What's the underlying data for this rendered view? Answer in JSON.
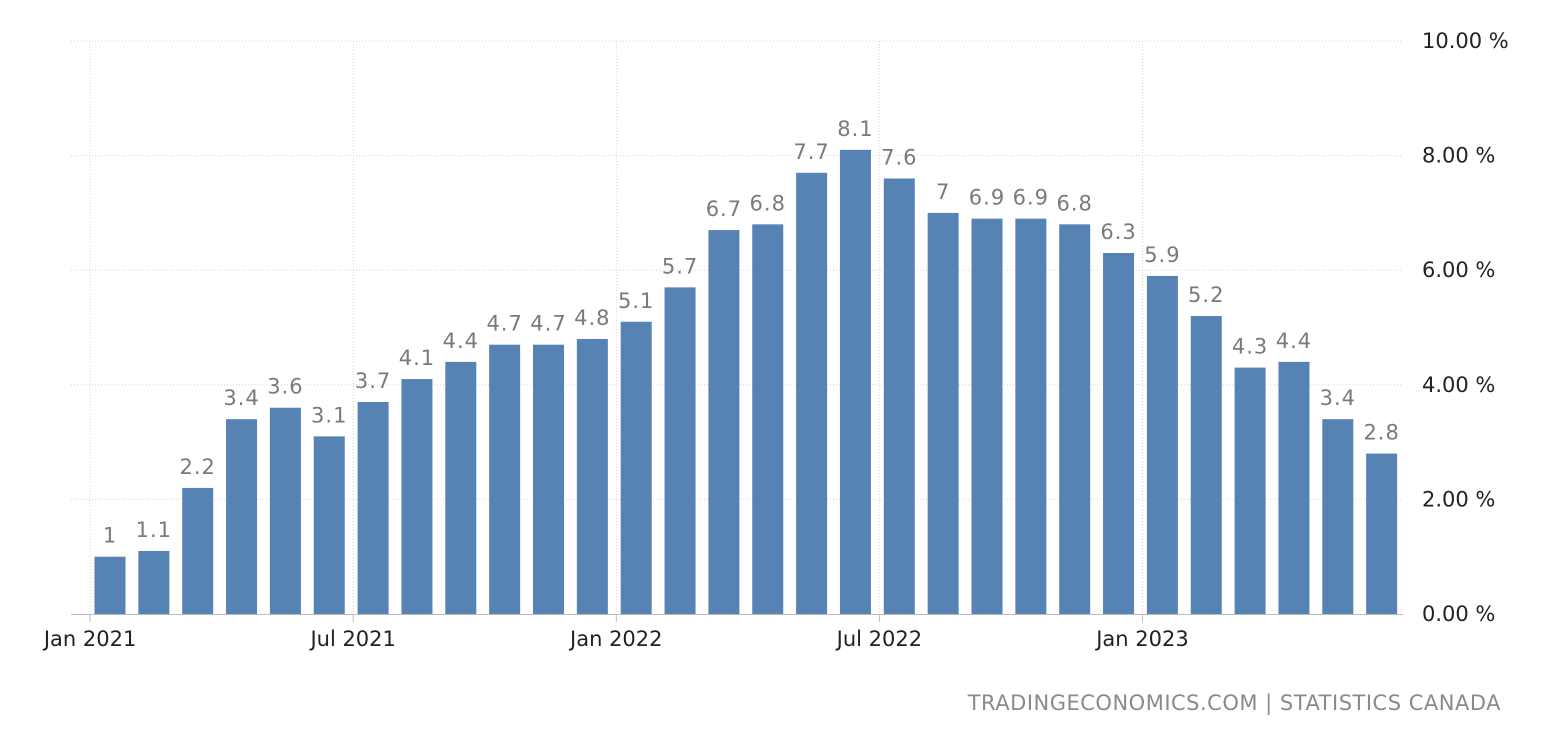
{
  "chart_data": {
    "type": "bar",
    "title": "",
    "xlabel": "",
    "ylabel": "",
    "categories": [
      "Jan 2021",
      "Feb 2021",
      "Mar 2021",
      "Apr 2021",
      "May 2021",
      "Jun 2021",
      "Jul 2021",
      "Aug 2021",
      "Sep 2021",
      "Oct 2021",
      "Nov 2021",
      "Dec 2021",
      "Jan 2022",
      "Feb 2022",
      "Mar 2022",
      "Apr 2022",
      "May 2022",
      "Jun 2022",
      "Jul 2022",
      "Aug 2022",
      "Sep 2022",
      "Oct 2022",
      "Nov 2022",
      "Dec 2022",
      "Jan 2023",
      "Feb 2023",
      "Mar 2023",
      "Apr 2023",
      "May 2023",
      "Jun 2023"
    ],
    "values": [
      1,
      1.1,
      2.2,
      3.4,
      3.6,
      3.1,
      3.7,
      4.1,
      4.4,
      4.7,
      4.7,
      4.8,
      5.1,
      5.7,
      6.7,
      6.8,
      7.7,
      8.1,
      7.6,
      7,
      6.9,
      6.9,
      6.8,
      6.3,
      5.9,
      5.2,
      4.3,
      4.4,
      3.4,
      2.8
    ],
    "data_labels": [
      "1",
      "1.1",
      "2.2",
      "3.4",
      "3.6",
      "3.1",
      "3.7",
      "4.1",
      "4.4",
      "4.7",
      "4.7",
      "4.8",
      "5.1",
      "5.7",
      "6.7",
      "6.8",
      "7.7",
      "8.1",
      "7.6",
      "7",
      "6.9",
      "6.9",
      "6.8",
      "6.3",
      "5.9",
      "5.2",
      "4.3",
      "4.4",
      "3.4",
      "2.8"
    ],
    "x_tick_labels": [
      {
        "category": "Jan 2021",
        "label": "Jan 2021"
      },
      {
        "category": "Jul 2021",
        "label": "Jul 2021"
      },
      {
        "category": "Jan 2022",
        "label": "Jan 2022"
      },
      {
        "category": "Jul 2022",
        "label": "Jul 2022"
      },
      {
        "category": "Jan 2023",
        "label": "Jan 2023"
      }
    ],
    "y_ticks": [
      0,
      2,
      4,
      6,
      8,
      10
    ],
    "y_tick_labels": [
      "0.00 %",
      "2.00 %",
      "4.00 %",
      "6.00 %",
      "8.00 %",
      "10.00 %"
    ],
    "ylim": [
      0,
      10
    ],
    "y_axis_side": "right",
    "grid": true,
    "bar_color": "#5682b4",
    "label_color": "#7a7a7a"
  },
  "footer": {
    "source": "TRADINGECONOMICS.COM | STATISTICS CANADA"
  }
}
